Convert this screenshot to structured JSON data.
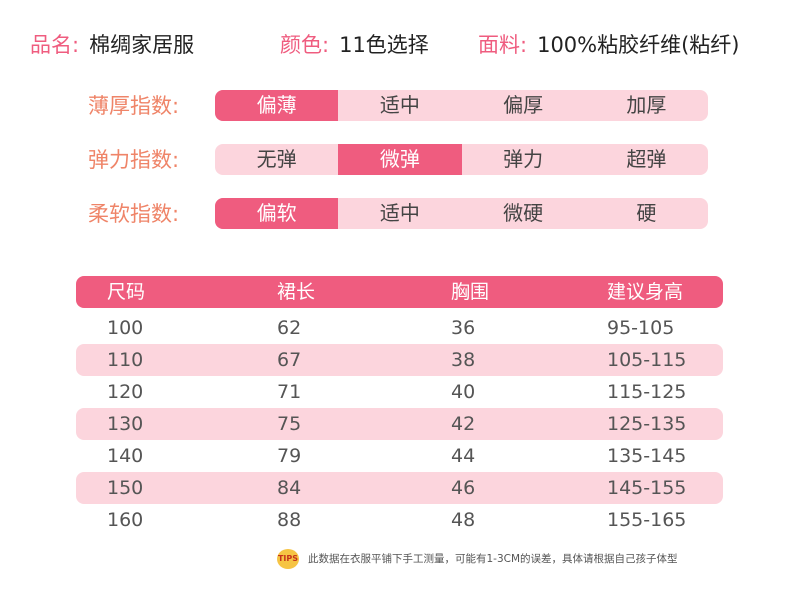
{
  "product_info": [
    {
      "label": "品名:",
      "value": "棉绸家居服"
    },
    {
      "label": "颜色:",
      "value": "11色选择"
    },
    {
      "label": "面料:",
      "value": "100%粘胶纤维(粘纤)"
    }
  ],
  "ratings": [
    {
      "label": "薄厚指数:",
      "options": [
        "偏薄",
        "适中",
        "偏厚",
        "加厚"
      ],
      "selected": "偏薄"
    },
    {
      "label": "弹力指数:",
      "options": [
        "无弹",
        "微弹",
        "弹力",
        "超弹"
      ],
      "selected": "微弹"
    },
    {
      "label": "柔软指数:",
      "options": [
        "偏软",
        "适中",
        "微硬",
        "硬"
      ],
      "selected": "偏软"
    }
  ],
  "size_table": {
    "headers": [
      "尺码",
      "裙长",
      "胸围",
      "建议身高"
    ],
    "rows": [
      [
        "100",
        "62",
        "36",
        "95-105"
      ],
      [
        "110",
        "67",
        "38",
        "105-115"
      ],
      [
        "120",
        "71",
        "40",
        "115-125"
      ],
      [
        "130",
        "75",
        "42",
        "125-135"
      ],
      [
        "140",
        "79",
        "44",
        "135-145"
      ],
      [
        "150",
        "84",
        "46",
        "145-155"
      ],
      [
        "160",
        "88",
        "48",
        "155-165"
      ]
    ]
  },
  "tips": {
    "badge": "TIPS",
    "text": "此数据在衣服平铺下手工测量，可能有1-3CM的误差，具体请根据自己孩子体型"
  },
  "colors": {
    "accent": "#ef5c7f",
    "stripe": "#fcd5dd",
    "label_orange": "#ef8468"
  }
}
